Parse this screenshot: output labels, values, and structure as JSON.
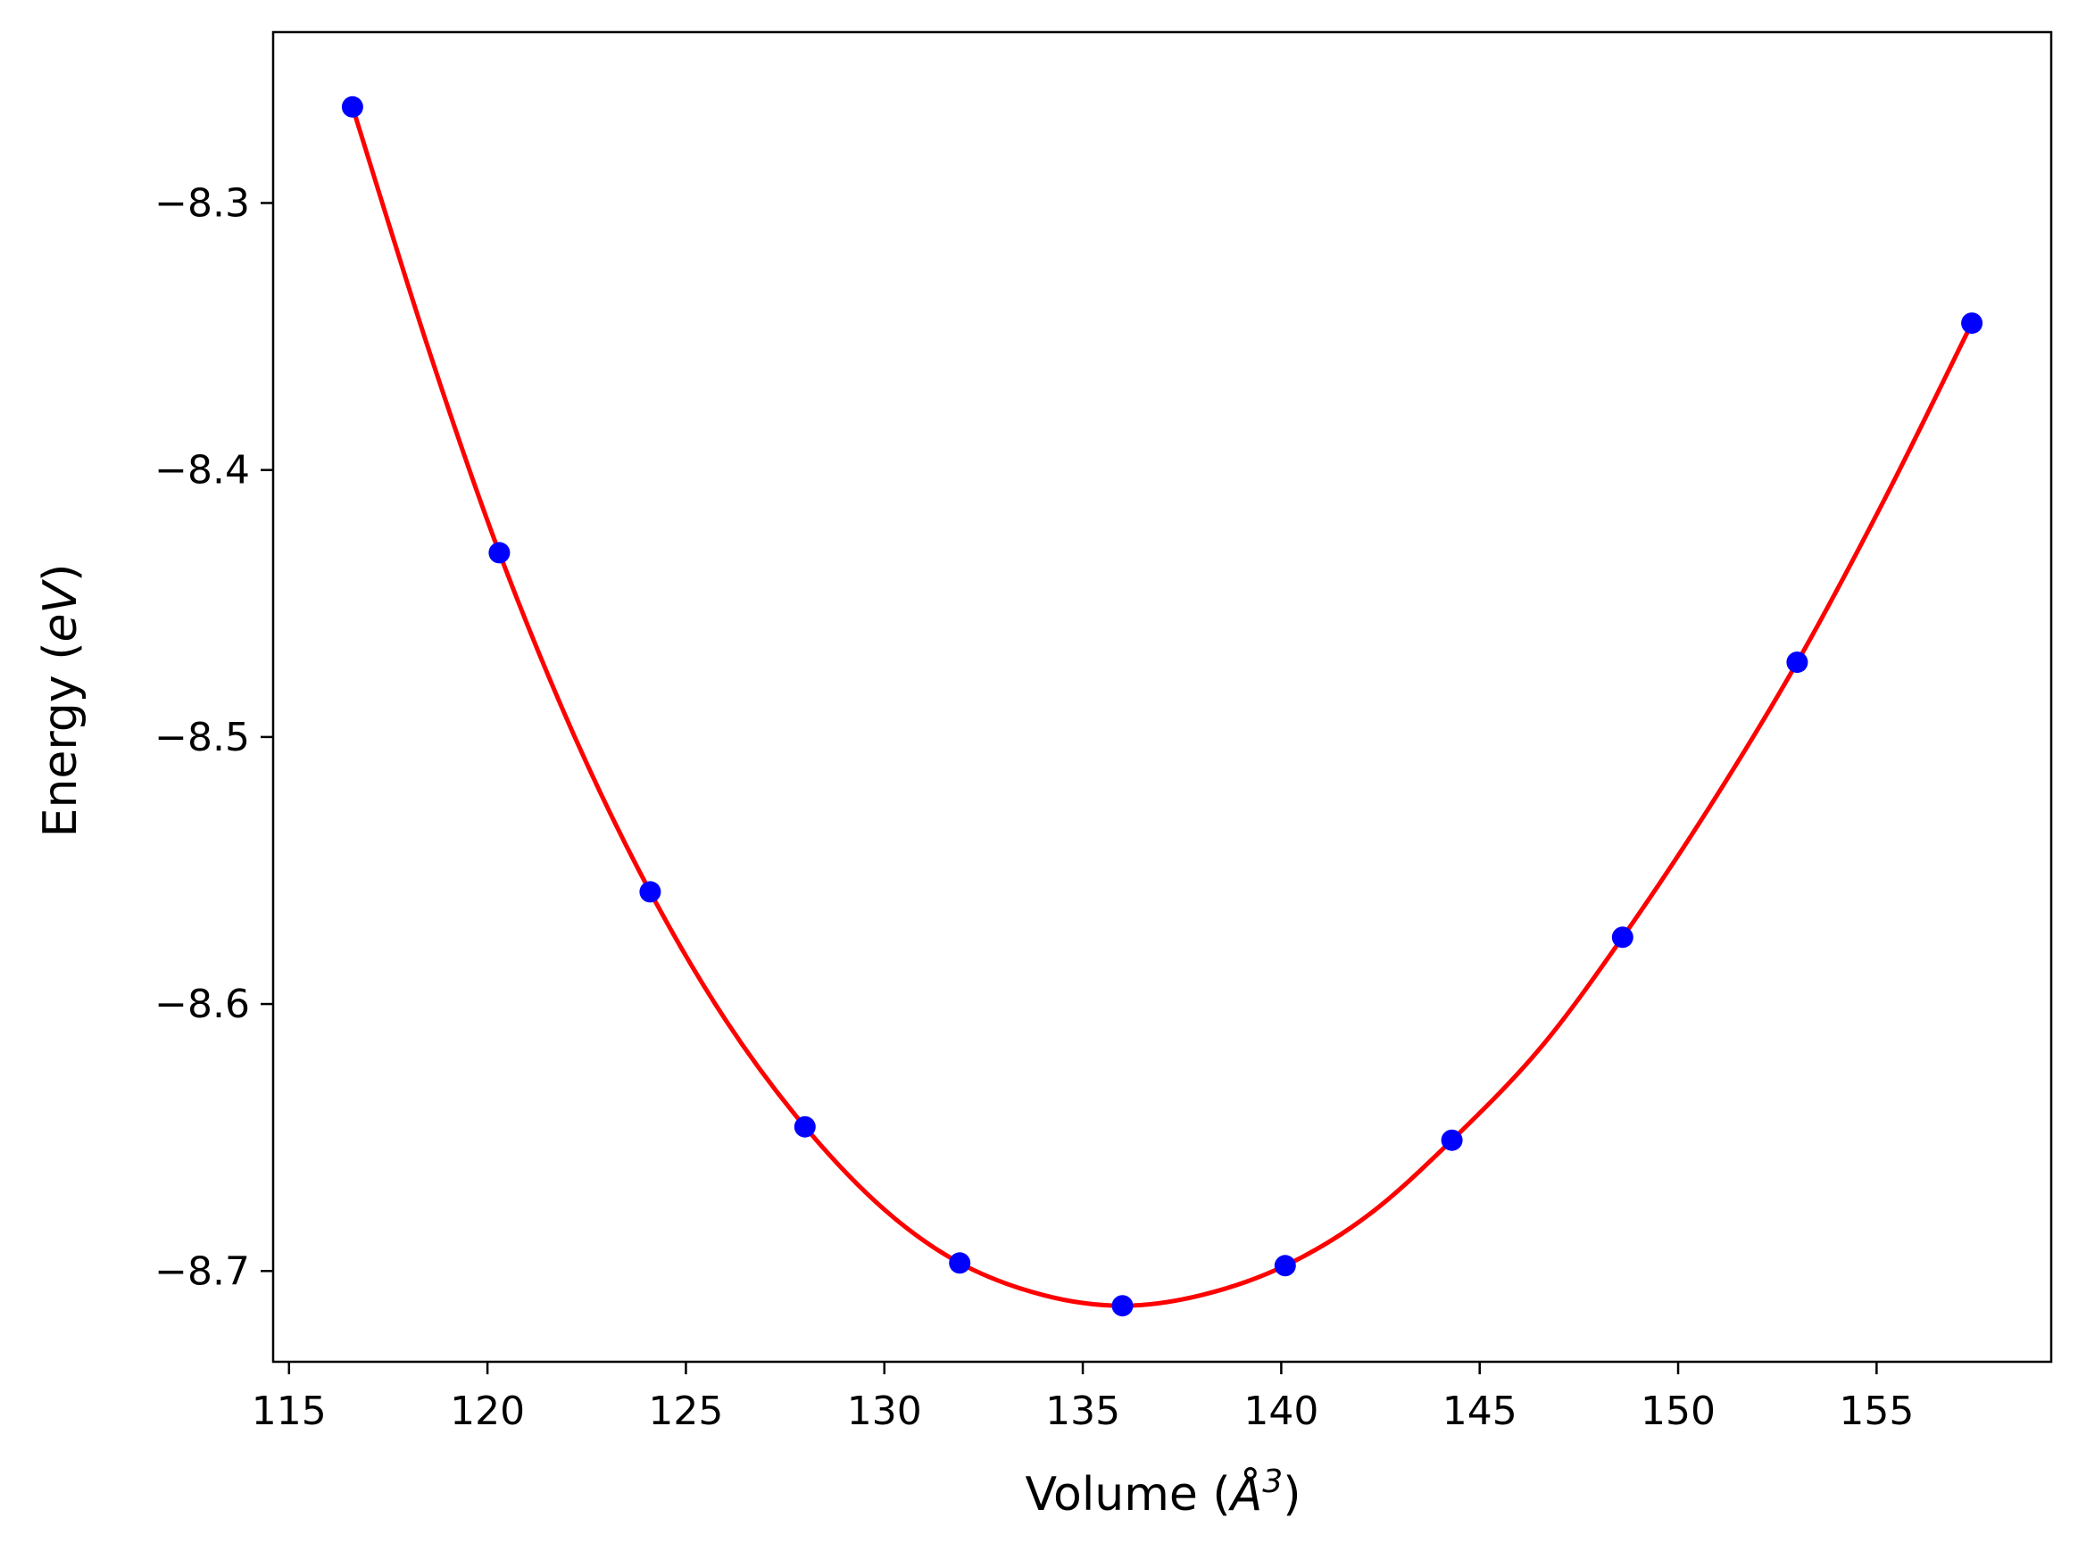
{
  "chart_data": {
    "type": "scatter",
    "title": "",
    "xlabel": {
      "pre": "Volume (",
      "symbol": "Å",
      "sup": "3",
      "post": ")"
    },
    "ylabel": {
      "pre": "Energy (",
      "unit": "eV",
      "post": ")"
    },
    "xlim": [
      114.6,
      159.4
    ],
    "ylim": [
      -8.734,
      -8.236
    ],
    "xticks": [
      115,
      120,
      125,
      130,
      135,
      140,
      145,
      150,
      155
    ],
    "xtick_labels": [
      "115",
      "120",
      "125",
      "130",
      "135",
      "140",
      "145",
      "150",
      "155"
    ],
    "yticks": [
      -8.3,
      -8.4,
      -8.5,
      -8.6,
      -8.7
    ],
    "ytick_labels": [
      "−8.3",
      "−8.4",
      "−8.5",
      "−8.6",
      "−8.7"
    ],
    "grid": false,
    "legend": "none",
    "series": [
      {
        "kind": "points",
        "color": "#0000ff",
        "x": [
          116.6,
          120.3,
          124.1,
          128.0,
          131.9,
          136.0,
          140.1,
          144.3,
          148.6,
          153.0,
          157.4
        ],
        "y": [
          -8.264,
          -8.431,
          -8.558,
          -8.646,
          -8.697,
          -8.713,
          -8.698,
          -8.651,
          -8.575,
          -8.472,
          -8.345
        ]
      },
      {
        "kind": "fit-line",
        "color": "#ff0000",
        "x": [
          116.6,
          118.5,
          120.3,
          122.2,
          124.1,
          126.0,
          128.0,
          130.0,
          131.9,
          134.0,
          136.0,
          138.0,
          140.1,
          142.2,
          144.3,
          146.5,
          148.6,
          150.8,
          153.0,
          155.2,
          157.4
        ],
        "y": [
          -8.264,
          -8.354,
          -8.431,
          -8.5,
          -8.558,
          -8.606,
          -8.646,
          -8.677,
          -8.697,
          -8.709,
          -8.713,
          -8.709,
          -8.698,
          -8.679,
          -8.651,
          -8.617,
          -8.575,
          -8.526,
          -8.472,
          -8.411,
          -8.345
        ]
      }
    ]
  }
}
